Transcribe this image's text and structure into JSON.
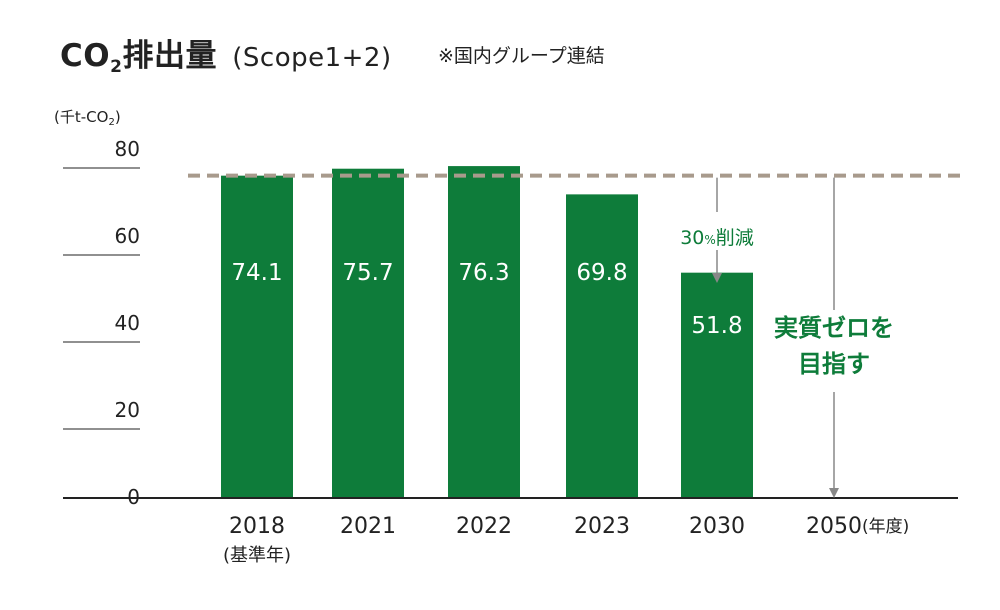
{
  "chart_data": {
    "type": "bar",
    "title": "CO₂排出量 (Scope1+2)",
    "title_parts": {
      "co": "CO",
      "two": "2",
      "main": "排出量",
      "scope": "(Scope1+2)"
    },
    "note": "※国内グループ連結",
    "ylabel": "(千t-CO₂)",
    "ylabel_parts": {
      "prefix": "(千t-CO",
      "two": "2",
      "suffix": ")"
    },
    "xunit": "(年度)",
    "ylim": [
      0,
      80
    ],
    "yticks": [
      "0",
      "20",
      "40",
      "60",
      "80"
    ],
    "categories": [
      "2018",
      "2021",
      "2022",
      "2023",
      "2030",
      "2050"
    ],
    "category_sublabels": [
      "(基準年)",
      "",
      "",
      "",
      "",
      ""
    ],
    "values": [
      74.1,
      75.7,
      76.3,
      69.8,
      51.8,
      null
    ],
    "value_labels": [
      "74.1",
      "75.7",
      "76.3",
      "69.8",
      "51.8",
      ""
    ],
    "reference_line": 74.1,
    "annotations": {
      "reduction_num": "30",
      "reduction_pct": "%",
      "reduction_text": "削減",
      "goal_line1": "実質ゼロを",
      "goal_line2": "目指す"
    },
    "colors": {
      "bar": "#0e7c3a",
      "reference": "#a89a8c",
      "axis": "#222222",
      "arrow": "#888888"
    },
    "grid": false
  }
}
